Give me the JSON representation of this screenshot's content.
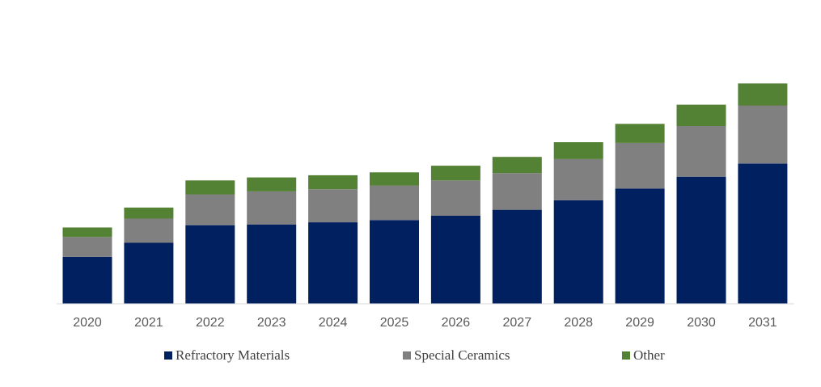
{
  "chart_data": {
    "type": "bar",
    "stacked": true,
    "title": "",
    "xlabel": "",
    "ylabel": "",
    "categories": [
      "2020",
      "2021",
      "2022",
      "2023",
      "2024",
      "2025",
      "2026",
      "2027",
      "2028",
      "2029",
      "2030",
      "2031"
    ],
    "series": [
      {
        "name": "Refractory Materials",
        "color": "#002060",
        "values": [
          64,
          83,
          107,
          108,
          111,
          114,
          120,
          128,
          141,
          157,
          173,
          191
        ]
      },
      {
        "name": "Special Ceramics",
        "color": "#808080",
        "values": [
          27,
          33,
          42,
          45,
          45,
          47,
          48,
          50,
          56,
          62,
          69,
          79
        ]
      },
      {
        "name": "Other",
        "color": "#548235",
        "values": [
          13,
          15,
          19,
          19,
          19,
          18,
          20,
          22,
          23,
          26,
          29,
          30
        ]
      }
    ],
    "ylim": [
      0,
      330
    ],
    "grid": false,
    "legend": "bottom"
  }
}
